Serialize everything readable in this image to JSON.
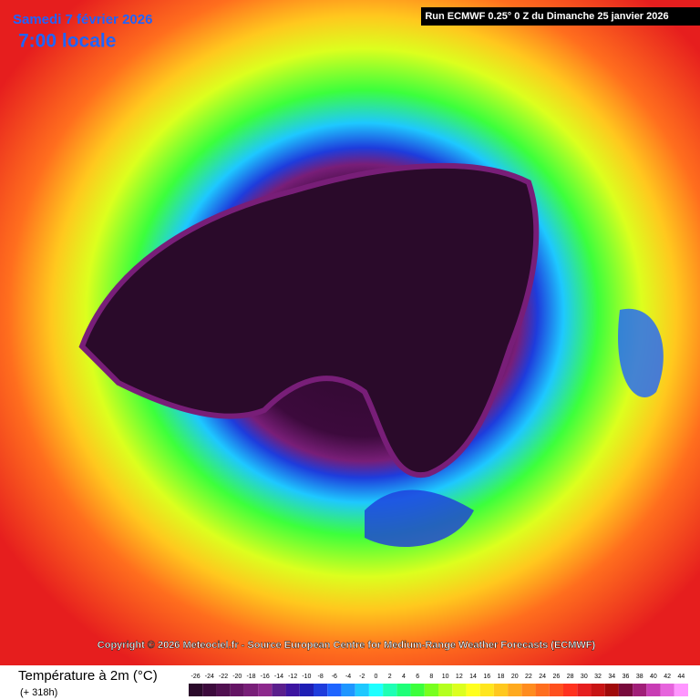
{
  "header": {
    "title": "Samedi 7 février 2026",
    "time": "7:00 locale",
    "run": "Run ECMWF 0.25° 0 Z du Dimanche 25 janvier 2026"
  },
  "copyright": "Copyright © 2026 Meteociel.fr - Source European Centre for Medium-Range Weather Forecasts (ECMWF)",
  "legend": {
    "title": "Température à 2m (°C)",
    "lead": "(+ 318h)",
    "ticks": [
      -26,
      -24,
      -22,
      -20,
      -18,
      -16,
      -14,
      -12,
      -10,
      -8,
      -6,
      -4,
      -2,
      0,
      2,
      4,
      6,
      8,
      10,
      12,
      14,
      16,
      18,
      20,
      22,
      24,
      26,
      28,
      30,
      32,
      34,
      36,
      38,
      40,
      42,
      44
    ],
    "colors": [
      "#2a0a2a",
      "#3c0a3c",
      "#501050",
      "#641464",
      "#781e78",
      "#8c288c",
      "#5a1e8c",
      "#3c14a0",
      "#1e1eb4",
      "#1e3cdc",
      "#1e64ff",
      "#1e96ff",
      "#1ec8ff",
      "#1effff",
      "#1effb4",
      "#1eff78",
      "#3cff3c",
      "#78ff1e",
      "#b4ff1e",
      "#dcff1e",
      "#ffff1e",
      "#ffe61e",
      "#ffc81e",
      "#ffaa1e",
      "#ff8c1e",
      "#ff6e1e",
      "#ff501e",
      "#ff321e",
      "#e61e1e",
      "#c81414",
      "#a00a0a",
      "#780a3c",
      "#a01e78",
      "#c83cb4",
      "#e664dc",
      "#ff96ff"
    ]
  }
}
